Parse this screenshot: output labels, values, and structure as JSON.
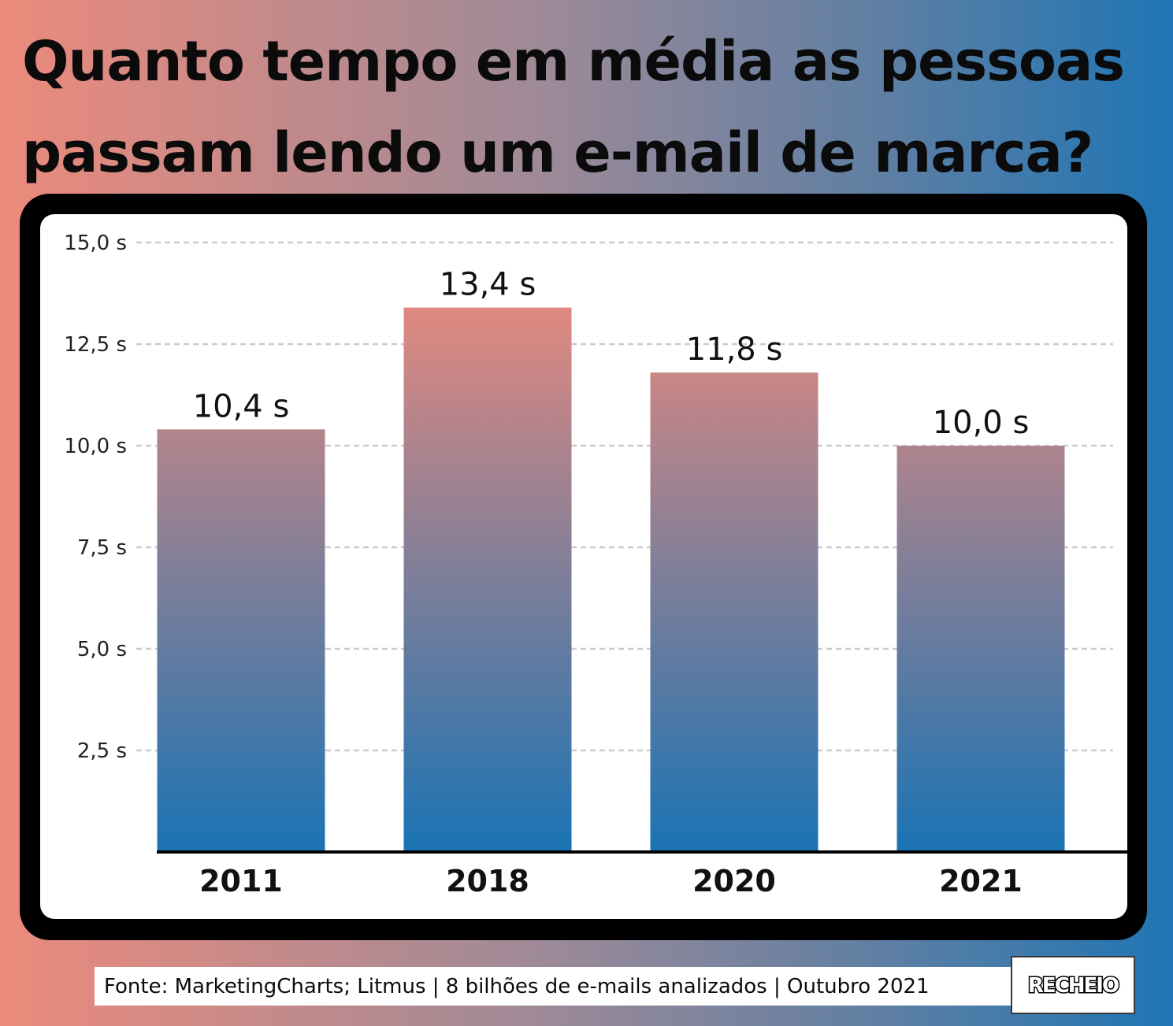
{
  "title": {
    "line1": "Quanto tempo em média as pessoas",
    "line2": "passam lendo um e-mail de marca?"
  },
  "footer": {
    "source": "Fonte: MarketingCharts; Litmus | 8 bilhões de e-mails analizados | Outubro 2021",
    "logo": "RECHEIO"
  },
  "colors": {
    "bar_top": "#e98a7d",
    "bar_bottom": "#1a73b4",
    "grid": "#cccccc",
    "frame": "#000000"
  },
  "chart_data": {
    "type": "bar",
    "categories": [
      "2011",
      "2018",
      "2020",
      "2021"
    ],
    "values": [
      10.4,
      13.4,
      11.8,
      10.0
    ],
    "value_labels": [
      "10,4 s",
      "13,4 s",
      "11,8 s",
      "10,0 s"
    ],
    "ylim": [
      0,
      15
    ],
    "yticks": [
      2.5,
      5.0,
      7.5,
      10.0,
      12.5,
      15.0
    ],
    "ytick_labels": [
      "2,5 s",
      "5,0 s",
      "7,5 s",
      "10,0 s",
      "12,5 s",
      "15,0 s"
    ],
    "grid": true,
    "xlabel": "",
    "ylabel": ""
  }
}
